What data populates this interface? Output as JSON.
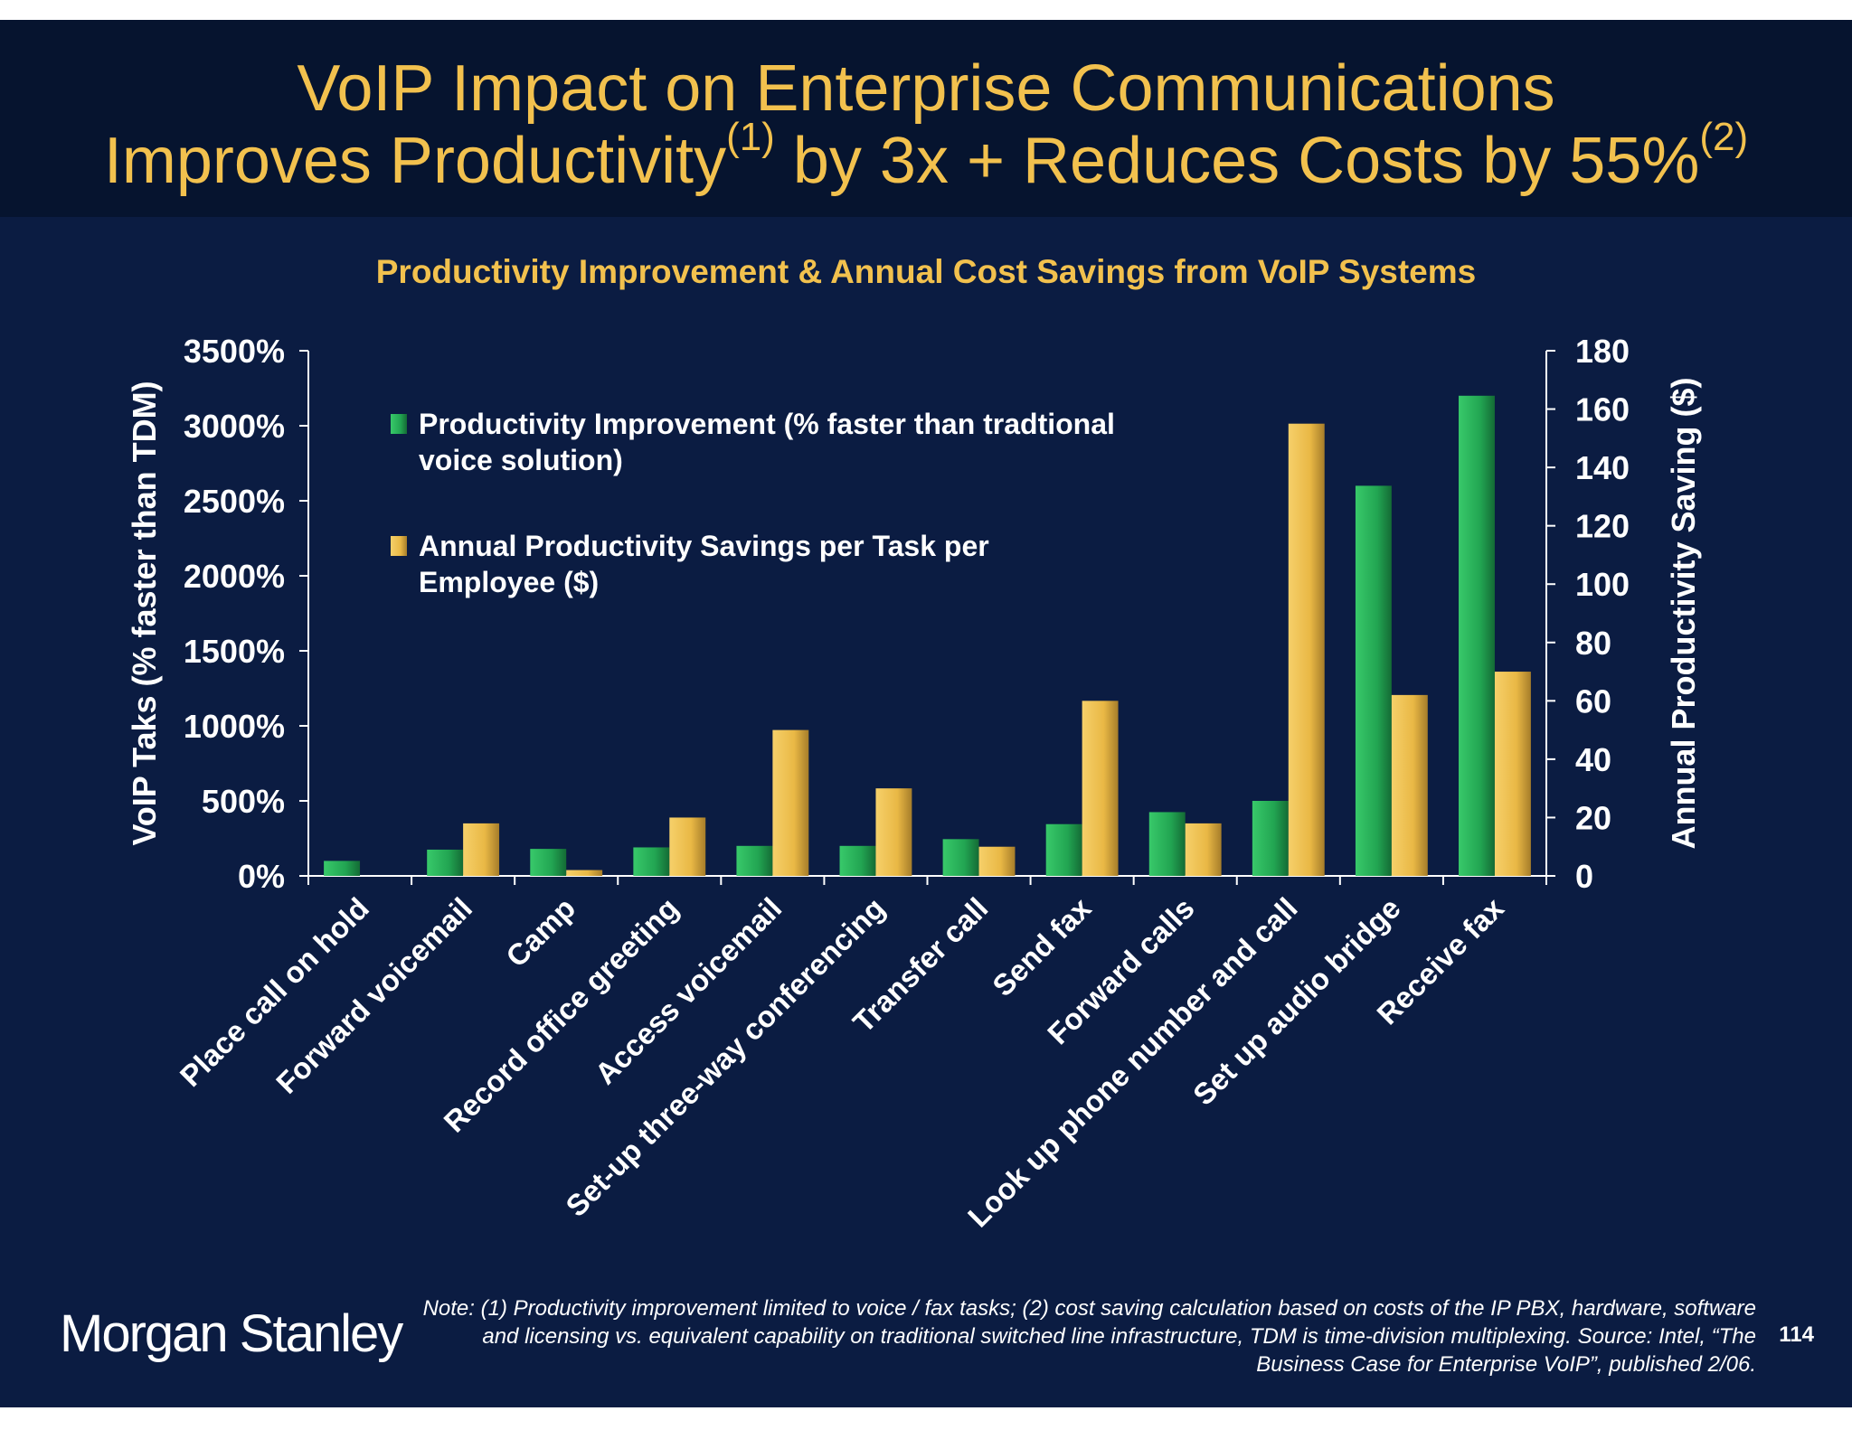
{
  "header": {
    "title_line1": "VoIP Impact on Enterprise Communications",
    "title_line2_a": "Improves Productivity",
    "sup1": "(1)",
    "title_line2_b": " by 3x + Reduces Costs by 55%",
    "sup2": "(2)"
  },
  "footer": {
    "logo": "Morgan Stanley",
    "note": "Note: (1) Productivity improvement limited to voice / fax tasks; (2) cost saving calculation based on costs of the IP PBX, hardware, software and licensing vs. equivalent capability on traditional switched line infrastructure, TDM is time-division multiplexing. Source: Intel, “The Business Case for Enterprise VoIP”, published 2/06.",
    "page_number": "114"
  },
  "chart_data": {
    "type": "bar",
    "title": "Productivity Improvement & Annual Cost Savings from VoIP Systems",
    "ylabel": "VoIP Taks (% faster than TDM)",
    "y2label": "Annual Productivity Saving ($)",
    "ylim": [
      0,
      3500
    ],
    "y2lim": [
      0,
      180
    ],
    "yticks": [
      "0%",
      "500%",
      "1000%",
      "1500%",
      "2000%",
      "2500%",
      "3000%",
      "3500%"
    ],
    "y2ticks": [
      "0",
      "20",
      "40",
      "60",
      "80",
      "100",
      "120",
      "140",
      "160",
      "180"
    ],
    "grid": false,
    "legend_placement": "top-left",
    "categories": [
      "Place call on hold",
      "Forward voicemail",
      "Camp",
      "Record office greeting",
      "Access voicemail",
      "Set-up three-way conferencing",
      "Transfer call",
      "Send fax",
      "Forward calls",
      "Look up phone number and call",
      "Set up audio bridge",
      "Receive fax"
    ],
    "series": [
      {
        "name": "Productivity Improvement (% faster than tradtional voice solution)",
        "axis": "left",
        "color": "#2db55d",
        "values": [
          100,
          175,
          180,
          190,
          200,
          200,
          245,
          345,
          425,
          500,
          2600,
          3200
        ]
      },
      {
        "name": "Annual Productivity Savings per Task per Employee ($)",
        "axis": "right",
        "color": "#f0c050",
        "values": [
          0,
          18,
          2,
          20,
          50,
          30,
          10,
          60,
          18,
          155,
          62,
          70
        ]
      }
    ],
    "legend_lines": [
      [
        "Productivity Improvement (% faster than tradtional",
        "voice solution)"
      ],
      [
        "Annual Productivity Savings per Task per",
        "Employee ($)"
      ]
    ]
  }
}
